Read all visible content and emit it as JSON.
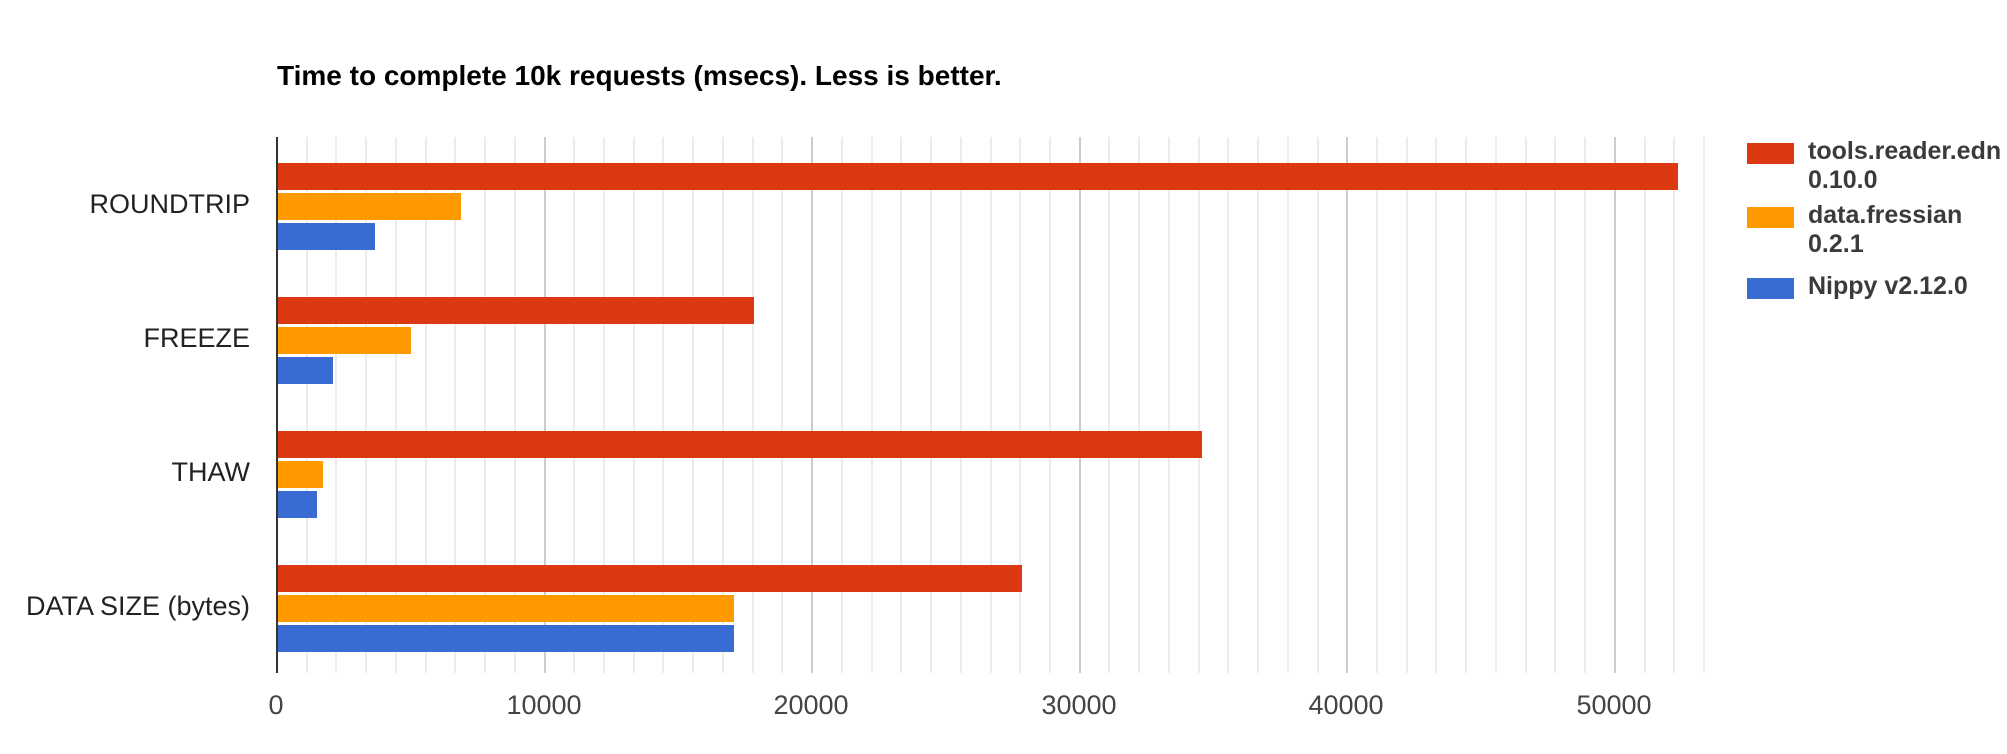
{
  "chart_data": {
    "type": "bar",
    "orientation": "horizontal",
    "title": "Time to complete 10k requests (msecs). Less is better.",
    "xlabel": "",
    "ylabel": "",
    "categories": [
      "ROUNDTRIP",
      "FREEZE",
      "THAW",
      "DATA SIZE (bytes)"
    ],
    "series": [
      {
        "name": "tools.reader.edn 0.10.0",
        "color": "#db3912",
        "values": [
          52400,
          17850,
          34600,
          27870
        ]
      },
      {
        "name": "data.fressian 0.2.1",
        "color": "#ff9900",
        "values": [
          6900,
          5050,
          1760,
          17100
        ]
      },
      {
        "name": "Nippy v2.12.0",
        "color": "#3a6bd3",
        "values": [
          3700,
          2130,
          1530,
          17100
        ]
      }
    ],
    "x_ticks": [
      {
        "value": 0,
        "label": "0"
      },
      {
        "value": 10000,
        "label": "10000"
      },
      {
        "value": 20000,
        "label": "20000"
      },
      {
        "value": 30000,
        "label": "30000"
      },
      {
        "value": 40000,
        "label": "40000"
      },
      {
        "value": 50000,
        "label": "50000"
      }
    ],
    "xlim": [
      0,
      53333
    ],
    "grid": true,
    "minor_gridlines_per_major": 9,
    "legend_position": "right"
  },
  "legend": {
    "items": [
      {
        "lines": [
          "tools.reader.edn",
          "0.10.0"
        ],
        "color": "#db3912"
      },
      {
        "lines": [
          "data.fressian",
          "0.2.1"
        ],
        "color": "#ff9900"
      },
      {
        "lines": [
          "Nippy v2.12.0"
        ],
        "color": "#3a6bd3"
      }
    ]
  }
}
